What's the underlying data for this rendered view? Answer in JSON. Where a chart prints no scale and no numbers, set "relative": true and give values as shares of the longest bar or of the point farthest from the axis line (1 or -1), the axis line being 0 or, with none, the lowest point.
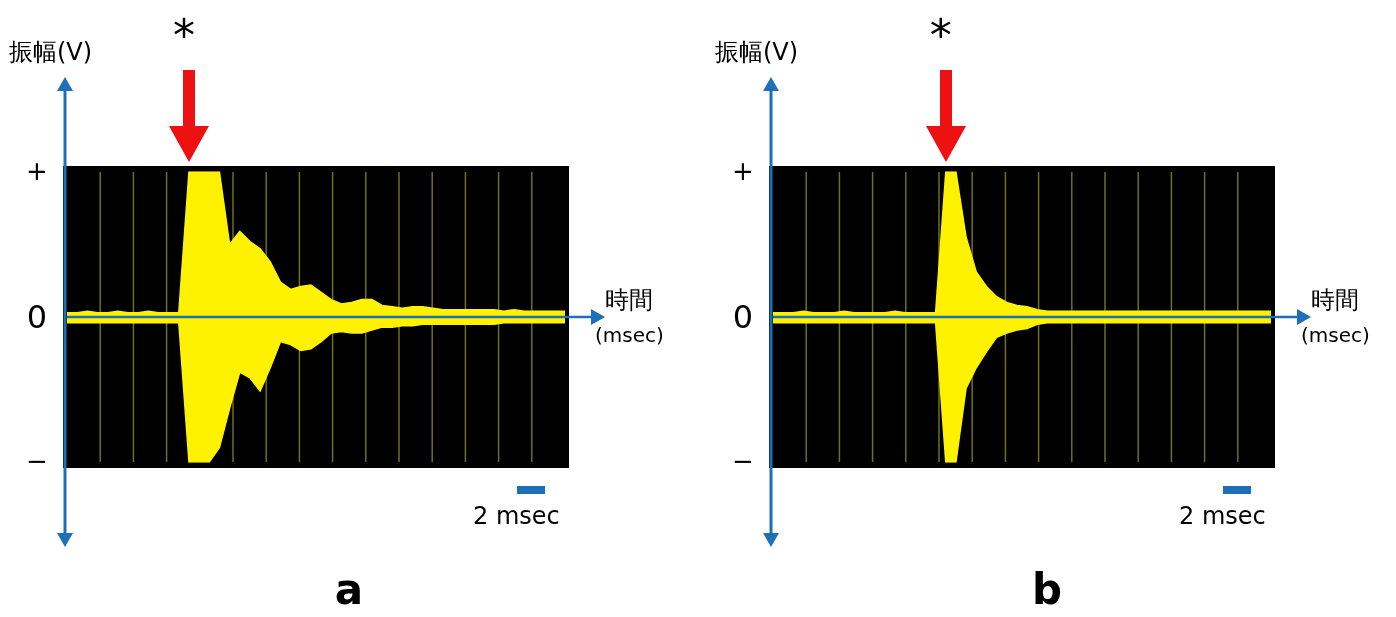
{
  "chart_data": [
    {
      "type": "area",
      "title": "a",
      "ylabel": "振幅(V)",
      "xlabel": "時間 (msec)",
      "relative": true,
      "grid": "x",
      "ref_lines": [
        {
          "axis": "y",
          "value": 0,
          "color": "#1f6fb8"
        }
      ],
      "annotations": [
        "+",
        "0",
        "−",
        "*",
        "2 msec"
      ],
      "categories": [
        null,
        null,
        null,
        null,
        null,
        null,
        null,
        null,
        null,
        null,
        null,
        null,
        null,
        null,
        null,
        null,
        null,
        null,
        null,
        null,
        null,
        null,
        null,
        null,
        null,
        null,
        null,
        null,
        null,
        null,
        null,
        null,
        null,
        null,
        null,
        null,
        null,
        null,
        null,
        null,
        null,
        null,
        null,
        null,
        null,
        null,
        null,
        null,
        null,
        null
      ],
      "series": [
        {
          "color": "#fff200",
          "values": [
            0.03,
            0.03,
            0.04,
            0.03,
            0.03,
            0.04,
            0.03,
            0.03,
            0.04,
            0.03,
            0.03,
            0.03,
            1,
            1,
            1,
            1,
            0.5,
            0.59,
            0.52,
            0.47,
            0.38,
            0.24,
            0.19,
            0.21,
            0.22,
            0.17,
            0.12,
            0.09,
            0.1,
            0.12,
            0.12,
            0.08,
            0.07,
            0.06,
            0.07,
            0.07,
            0.06,
            0.05,
            0.05,
            0.05,
            0.05,
            0.05,
            0.05,
            0.04,
            0.05,
            0.04,
            0.04,
            0.04,
            0.04,
            0.04
          ]
        },
        {
          "color": "#fff200",
          "values": [
            -0.04,
            -0.04,
            -0.04,
            -0.04,
            -0.04,
            -0.04,
            -0.04,
            -0.04,
            -0.04,
            -0.04,
            -0.04,
            -0.04,
            -1,
            -1,
            -1,
            -0.9,
            -0.63,
            -0.38,
            -0.42,
            -0.51,
            -0.35,
            -0.17,
            -0.19,
            -0.23,
            -0.22,
            -0.17,
            -0.11,
            -0.1,
            -0.11,
            -0.11,
            -0.09,
            -0.07,
            -0.07,
            -0.06,
            -0.06,
            -0.05,
            -0.05,
            -0.05,
            -0.05,
            -0.05,
            -0.05,
            -0.05,
            -0.05,
            -0.04,
            -0.04,
            -0.04,
            -0.04,
            -0.04,
            -0.04,
            -0.04
          ]
        }
      ]
    },
    {
      "type": "area",
      "title": "b",
      "ylabel": "振幅(V)",
      "xlabel": "時間 (msec)",
      "relative": true,
      "grid": "x",
      "ref_lines": [
        {
          "axis": "y",
          "value": 0,
          "color": "#1f6fb8"
        }
      ],
      "annotations": [
        "+",
        "0",
        "−",
        "*",
        "2 msec"
      ],
      "categories": [
        null,
        null,
        null,
        null,
        null,
        null,
        null,
        null,
        null,
        null,
        null,
        null,
        null,
        null,
        null,
        null,
        null,
        null,
        null,
        null,
        null,
        null,
        null,
        null,
        null,
        null,
        null,
        null,
        null,
        null,
        null,
        null,
        null,
        null,
        null,
        null,
        null,
        null,
        null,
        null,
        null,
        null,
        null,
        null,
        null,
        null,
        null,
        null,
        null,
        null
      ],
      "series": [
        {
          "color": "#fff200",
          "values": [
            0.03,
            0.03,
            0.03,
            0.04,
            0.03,
            0.03,
            0.03,
            0.04,
            0.03,
            0.03,
            0.03,
            0.03,
            0.04,
            0.03,
            0.03,
            0.03,
            0.03,
            1,
            1,
            0.55,
            0.31,
            0.21,
            0.14,
            0.1,
            0.08,
            0.07,
            0.05,
            0.04,
            0.04,
            0.04,
            0.04,
            0.04,
            0.04,
            0.04,
            0.04,
            0.04,
            0.04,
            0.04,
            0.04,
            0.04,
            0.04,
            0.04,
            0.04,
            0.04,
            0.04,
            0.04,
            0.04,
            0.04,
            0.04,
            0.04
          ]
        },
        {
          "color": "#fff200",
          "values": [
            -0.04,
            -0.04,
            -0.04,
            -0.04,
            -0.04,
            -0.04,
            -0.04,
            -0.04,
            -0.04,
            -0.04,
            -0.04,
            -0.04,
            -0.04,
            -0.04,
            -0.04,
            -0.04,
            -0.04,
            -1,
            -1,
            -0.49,
            -0.35,
            -0.24,
            -0.14,
            -0.11,
            -0.09,
            -0.08,
            -0.05,
            -0.04,
            -0.04,
            -0.04,
            -0.04,
            -0.04,
            -0.04,
            -0.04,
            -0.04,
            -0.04,
            -0.04,
            -0.04,
            -0.04,
            -0.04,
            -0.04,
            -0.04,
            -0.04,
            -0.04,
            -0.04,
            -0.04,
            -0.04,
            -0.04,
            -0.04,
            -0.04
          ]
        }
      ]
    }
  ]
}
